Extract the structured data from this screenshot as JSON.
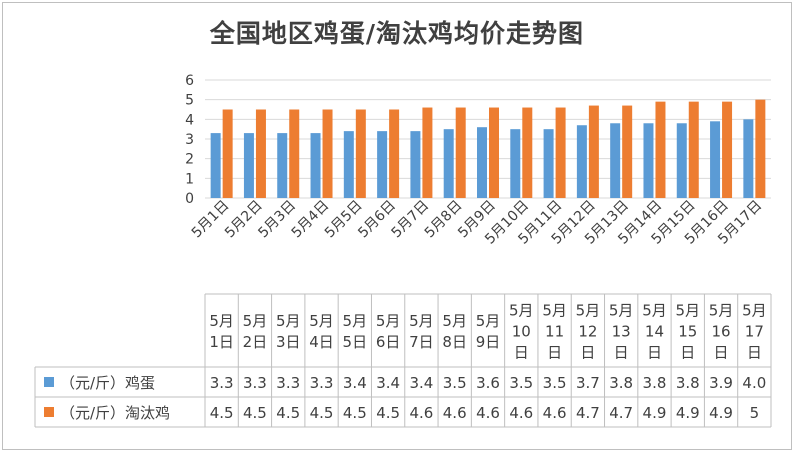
{
  "chart_data": {
    "type": "bar",
    "title": "全国地区鸡蛋/淘汰鸡均价走势图",
    "categories": [
      "5月1日",
      "5月2日",
      "5月3日",
      "5月4日",
      "5月5日",
      "5月6日",
      "5月7日",
      "5月8日",
      "5月9日",
      "5月10日",
      "5月11日",
      "5月12日",
      "5月13日",
      "5月14日",
      "5月15日",
      "5月16日",
      "5月17日"
    ],
    "table_categories": [
      [
        "5月",
        "1日"
      ],
      [
        "5月",
        "2日"
      ],
      [
        "5月",
        "3日"
      ],
      [
        "5月",
        "4日"
      ],
      [
        "5月",
        "5日"
      ],
      [
        "5月",
        "6日"
      ],
      [
        "5月",
        "7日"
      ],
      [
        "5月",
        "8日"
      ],
      [
        "5月",
        "9日"
      ],
      [
        "5月",
        "10",
        "日"
      ],
      [
        "5月",
        "11",
        "日"
      ],
      [
        "5月",
        "12",
        "日"
      ],
      [
        "5月",
        "13",
        "日"
      ],
      [
        "5月",
        "14",
        "日"
      ],
      [
        "5月",
        "15",
        "日"
      ],
      [
        "5月",
        "16",
        "日"
      ],
      [
        "5月",
        "17",
        "日"
      ]
    ],
    "series": [
      {
        "name": "（元/斤）鸡蛋",
        "color": "#5b9bd5",
        "values": [
          3.3,
          3.3,
          3.3,
          3.3,
          3.4,
          3.4,
          3.4,
          3.5,
          3.6,
          3.5,
          3.5,
          3.7,
          3.8,
          3.8,
          3.8,
          3.9,
          4.0
        ],
        "labels": [
          "3.3",
          "3.3",
          "3.3",
          "3.3",
          "3.4",
          "3.4",
          "3.4",
          "3.5",
          "3.6",
          "3.5",
          "3.5",
          "3.7",
          "3.8",
          "3.8",
          "3.8",
          "3.9",
          "4.0"
        ]
      },
      {
        "name": "（元/斤）淘汰鸡",
        "color": "#ed7d31",
        "values": [
          4.5,
          4.5,
          4.5,
          4.5,
          4.5,
          4.5,
          4.6,
          4.6,
          4.6,
          4.6,
          4.6,
          4.7,
          4.7,
          4.9,
          4.9,
          4.9,
          5
        ],
        "labels": [
          "4.5",
          "4.5",
          "4.5",
          "4.5",
          "4.5",
          "4.5",
          "4.6",
          "4.6",
          "4.6",
          "4.6",
          "4.6",
          "4.7",
          "4.7",
          "4.9",
          "4.9",
          "4.9",
          "5"
        ]
      }
    ],
    "ylim": [
      0,
      6
    ],
    "yticks": [
      "0",
      "1",
      "2",
      "3",
      "4",
      "5",
      "6"
    ],
    "grid": true,
    "legend": "data-table"
  }
}
